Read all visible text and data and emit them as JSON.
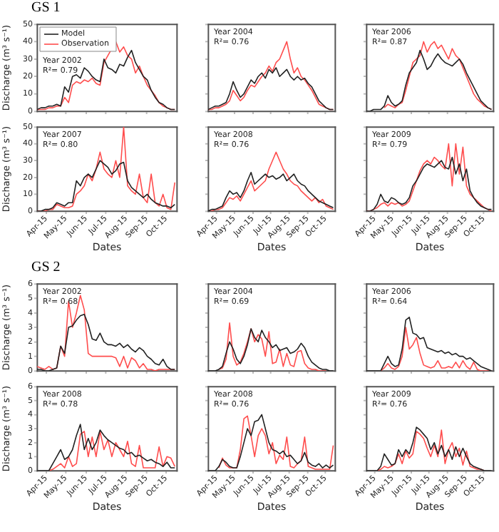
{
  "chart_data": [
    {
      "type": "line",
      "title": "GS 1",
      "ylabel": "Discharge (m³ s⁻¹)",
      "annotations": [
        "Year 2002",
        "R²= 0.79"
      ],
      "legend": "top left",
      "tick_labels": "y",
      "xlim": [
        "--04-01",
        "--10-31"
      ],
      "xticks": [
        {
          "value": "--04-15",
          "label": null
        },
        {
          "value": "--05-15",
          "label": null
        },
        {
          "value": "--06-15",
          "label": null
        },
        {
          "value": "--07-15",
          "label": null
        },
        {
          "value": "--08-15",
          "label": null
        },
        {
          "value": "--09-15",
          "label": null
        },
        {
          "value": "--10-15",
          "label": null
        }
      ],
      "ylim": [
        0,
        50
      ],
      "yticks": [
        0,
        10,
        20,
        30,
        40,
        50
      ],
      "x": [
        "--04-01",
        "--04-07",
        "--04-13",
        "--04-19",
        "--04-25",
        "--05-01",
        "--05-07",
        "--05-13",
        "--05-19",
        "--05-25",
        "--05-31",
        "--06-06",
        "--06-12",
        "--06-18",
        "--06-24",
        "--06-30",
        "--07-06",
        "--07-12",
        "--07-18",
        "--07-24",
        "--07-30",
        "--08-05",
        "--08-11",
        "--08-17",
        "--08-23",
        "--08-29",
        "--09-04",
        "--09-10",
        "--09-16",
        "--09-22",
        "--09-28",
        "--10-04",
        "--10-10",
        "--10-16",
        "--10-22",
        "--10-28"
      ],
      "series": [
        {
          "name": "Model",
          "color": "#222222",
          "values": [
            1,
            2,
            2,
            3,
            3,
            4,
            3,
            14,
            11,
            20,
            21,
            19,
            25,
            23,
            20,
            18,
            17,
            30,
            25,
            24,
            22,
            27,
            26,
            31,
            35,
            28,
            24,
            20,
            18,
            12,
            8,
            5,
            4,
            2,
            1,
            1
          ]
        },
        {
          "name": "Observation",
          "color": "#ff4d4d",
          "values": [
            1,
            1,
            1,
            2,
            2,
            3,
            3,
            8,
            5,
            15,
            17,
            16,
            18,
            17,
            19,
            16,
            15,
            28,
            32,
            36,
            40,
            34,
            37,
            32,
            30,
            22,
            26,
            20,
            15,
            12,
            9,
            5,
            3,
            2,
            1,
            1
          ]
        }
      ]
    },
    {
      "type": "line",
      "annotations": [
        "Year 2004",
        "R²= 0.76"
      ],
      "tick_labels": false,
      "xlim": [
        "--04-01",
        "--10-31"
      ],
      "xticks": [
        {
          "value": "--04-15",
          "label": null
        },
        {
          "value": "--05-15",
          "label": null
        },
        {
          "value": "--06-15",
          "label": null
        },
        {
          "value": "--07-15",
          "label": null
        },
        {
          "value": "--08-15",
          "label": null
        },
        {
          "value": "--09-15",
          "label": null
        },
        {
          "value": "--10-15",
          "label": null
        }
      ],
      "ylim": [
        0,
        50
      ],
      "yticks": [
        {
          "value": 0,
          "label": null
        },
        {
          "value": 10,
          "label": null
        },
        {
          "value": 20,
          "label": null
        },
        {
          "value": 30,
          "label": null
        },
        {
          "value": 40,
          "label": null
        },
        {
          "value": 50,
          "label": null
        }
      ],
      "x": [
        "--04-01",
        "--04-07",
        "--04-13",
        "--04-19",
        "--04-25",
        "--05-01",
        "--05-07",
        "--05-13",
        "--05-19",
        "--05-25",
        "--05-31",
        "--06-06",
        "--06-12",
        "--06-18",
        "--06-24",
        "--06-30",
        "--07-06",
        "--07-12",
        "--07-18",
        "--07-24",
        "--07-30",
        "--08-05",
        "--08-11",
        "--08-17",
        "--08-23",
        "--08-29",
        "--09-04",
        "--09-10",
        "--09-16",
        "--09-22",
        "--09-28",
        "--10-04",
        "--10-10",
        "--10-16",
        "--10-22",
        "--10-28"
      ],
      "series": [
        {
          "color": "#222222",
          "values": [
            1,
            2,
            3,
            3,
            4,
            5,
            10,
            17,
            12,
            8,
            10,
            14,
            18,
            16,
            20,
            22,
            19,
            24,
            22,
            25,
            20,
            22,
            24,
            20,
            18,
            20,
            18,
            19,
            16,
            14,
            10,
            6,
            4,
            2,
            1,
            1
          ]
        },
        {
          "color": "#ff4d4d",
          "values": [
            1,
            1,
            2,
            2,
            3,
            4,
            6,
            12,
            9,
            6,
            8,
            12,
            15,
            14,
            17,
            20,
            22,
            26,
            23,
            28,
            30,
            35,
            40,
            30,
            22,
            25,
            20,
            18,
            15,
            12,
            8,
            4,
            3,
            2,
            1,
            1
          ]
        }
      ]
    },
    {
      "type": "line",
      "annotations": [
        "Year 2006",
        "R²= 0.87"
      ],
      "tick_labels": false,
      "xlim": [
        "--04-01",
        "--10-31"
      ],
      "xticks": [
        {
          "value": "--04-15",
          "label": null
        },
        {
          "value": "--05-15",
          "label": null
        },
        {
          "value": "--06-15",
          "label": null
        },
        {
          "value": "--07-15",
          "label": null
        },
        {
          "value": "--08-15",
          "label": null
        },
        {
          "value": "--09-15",
          "label": null
        },
        {
          "value": "--10-15",
          "label": null
        }
      ],
      "ylim": [
        0,
        50
      ],
      "yticks": [
        {
          "value": 0,
          "label": null
        },
        {
          "value": 10,
          "label": null
        },
        {
          "value": 20,
          "label": null
        },
        {
          "value": 30,
          "label": null
        },
        {
          "value": 40,
          "label": null
        },
        {
          "value": 50,
          "label": null
        }
      ],
      "x": [
        "--04-01",
        "--04-07",
        "--04-13",
        "--04-19",
        "--04-25",
        "--05-01",
        "--05-07",
        "--05-13",
        "--05-19",
        "--05-25",
        "--05-31",
        "--06-06",
        "--06-12",
        "--06-18",
        "--06-24",
        "--06-30",
        "--07-06",
        "--07-12",
        "--07-18",
        "--07-24",
        "--07-30",
        "--08-05",
        "--08-11",
        "--08-17",
        "--08-23",
        "--08-29",
        "--09-04",
        "--09-10",
        "--09-16",
        "--09-22",
        "--09-28",
        "--10-04",
        "--10-10",
        "--10-16",
        "--10-22",
        "--10-28"
      ],
      "series": [
        {
          "color": "#222222",
          "values": [
            0,
            0,
            1,
            1,
            1,
            3,
            9,
            5,
            3,
            4,
            6,
            15,
            22,
            25,
            28,
            35,
            30,
            24,
            26,
            30,
            33,
            30,
            28,
            27,
            26,
            28,
            30,
            27,
            22,
            18,
            14,
            10,
            6,
            4,
            2,
            1
          ]
        },
        {
          "color": "#ff4d4d",
          "values": [
            null,
            null,
            null,
            null,
            null,
            2,
            4,
            3,
            2,
            4,
            5,
            12,
            20,
            28,
            30,
            32,
            40,
            34,
            38,
            40,
            36,
            38,
            34,
            30,
            36,
            32,
            30,
            25,
            20,
            15,
            10,
            7,
            5,
            3,
            2,
            1
          ]
        }
      ]
    },
    {
      "type": "line",
      "xlabel": "Dates",
      "ylabel": "Discharge (m³ s⁻¹)",
      "annotations": [
        "Year 2007",
        "R²= 0.80"
      ],
      "xlim": [
        "--04-01",
        "--10-31"
      ],
      "xticks": [
        {
          "value": "--04-15",
          "label": "Apr-15"
        },
        {
          "value": "--05-15",
          "label": "May-15"
        },
        {
          "value": "--06-15",
          "label": "Jun-15"
        },
        {
          "value": "--07-15",
          "label": "Jul-15"
        },
        {
          "value": "--08-15",
          "label": "Aug-15"
        },
        {
          "value": "--09-15",
          "label": "Sep-15"
        },
        {
          "value": "--10-15",
          "label": "Oct-15"
        }
      ],
      "ylim": [
        0,
        50
      ],
      "yticks": [
        0,
        10,
        20,
        30,
        40,
        50
      ],
      "x": [
        "--04-01",
        "--04-07",
        "--04-13",
        "--04-19",
        "--04-25",
        "--05-01",
        "--05-07",
        "--05-13",
        "--05-19",
        "--05-25",
        "--05-31",
        "--06-06",
        "--06-12",
        "--06-18",
        "--06-24",
        "--06-30",
        "--07-06",
        "--07-12",
        "--07-18",
        "--07-24",
        "--07-30",
        "--08-05",
        "--08-11",
        "--08-17",
        "--08-23",
        "--08-29",
        "--09-04",
        "--09-10",
        "--09-16",
        "--09-22",
        "--09-28",
        "--10-04",
        "--10-10",
        "--10-16",
        "--10-22",
        "--10-28"
      ],
      "series": [
        {
          "color": "#222222",
          "values": [
            0,
            0,
            1,
            1,
            2,
            5,
            4,
            3,
            5,
            5,
            18,
            15,
            20,
            22,
            20,
            25,
            30,
            28,
            26,
            22,
            24,
            28,
            29,
            18,
            14,
            12,
            10,
            8,
            10,
            7,
            5,
            4,
            3,
            3,
            2,
            4
          ]
        },
        {
          "color": "#ff4d4d",
          "values": [
            0,
            0,
            0,
            1,
            1,
            4,
            3,
            2,
            2,
            3,
            10,
            12,
            15,
            22,
            18,
            25,
            35,
            25,
            22,
            20,
            30,
            20,
            50,
            15,
            12,
            10,
            22,
            8,
            5,
            22,
            5,
            3,
            10,
            2,
            1,
            17
          ]
        }
      ]
    },
    {
      "type": "line",
      "xlabel": "Dates",
      "annotations": [
        "Year 2008",
        "R²= 0.76"
      ],
      "tick_labels": "x",
      "xlim": [
        "--04-01",
        "--10-31"
      ],
      "xticks": [
        {
          "value": "--04-15",
          "label": "Apr-15"
        },
        {
          "value": "--05-15",
          "label": "May-15"
        },
        {
          "value": "--06-15",
          "label": "Jun-15"
        },
        {
          "value": "--07-15",
          "label": "Jul-15"
        },
        {
          "value": "--08-15",
          "label": "Aug-15"
        },
        {
          "value": "--09-15",
          "label": "Sep-15"
        },
        {
          "value": "--10-15",
          "label": "Oct-15"
        }
      ],
      "ylim": [
        0,
        50
      ],
      "yticks": [
        {
          "value": 0,
          "label": null
        },
        {
          "value": 10,
          "label": null
        },
        {
          "value": 20,
          "label": null
        },
        {
          "value": 30,
          "label": null
        },
        {
          "value": 40,
          "label": null
        },
        {
          "value": 50,
          "label": null
        }
      ],
      "x": [
        "--04-01",
        "--04-07",
        "--04-13",
        "--04-19",
        "--04-25",
        "--05-01",
        "--05-07",
        "--05-13",
        "--05-19",
        "--05-25",
        "--05-31",
        "--06-06",
        "--06-12",
        "--06-18",
        "--06-24",
        "--06-30",
        "--07-06",
        "--07-12",
        "--07-18",
        "--07-24",
        "--07-30",
        "--08-05",
        "--08-11",
        "--08-17",
        "--08-23",
        "--08-29",
        "--09-04",
        "--09-10",
        "--09-16",
        "--09-22",
        "--09-28",
        "--10-04",
        "--10-10",
        "--10-16",
        "--10-22",
        "--10-28"
      ],
      "series": [
        {
          "color": "#222222",
          "values": [
            0,
            1,
            1,
            2,
            3,
            8,
            12,
            10,
            11,
            8,
            12,
            18,
            23,
            16,
            18,
            20,
            22,
            20,
            21,
            19,
            20,
            22,
            18,
            20,
            22,
            18,
            16,
            15,
            12,
            10,
            8,
            6,
            5,
            4,
            3,
            2
          ]
        },
        {
          "color": "#ff4d4d",
          "values": [
            0,
            0,
            1,
            1,
            2,
            5,
            8,
            7,
            9,
            6,
            10,
            14,
            18,
            12,
            14,
            16,
            18,
            25,
            30,
            35,
            30,
            25,
            22,
            18,
            16,
            15,
            12,
            10,
            8,
            6,
            8,
            5,
            7,
            3,
            2,
            1
          ]
        }
      ]
    },
    {
      "type": "line",
      "xlabel": "Dates",
      "annotations": [
        "Year 2009",
        "R²= 0.79"
      ],
      "tick_labels": "x",
      "xlim": [
        "--04-01",
        "--10-31"
      ],
      "xticks": [
        {
          "value": "--04-15",
          "label": "Apr-15"
        },
        {
          "value": "--05-15",
          "label": "May-15"
        },
        {
          "value": "--06-15",
          "label": "Jun-15"
        },
        {
          "value": "--07-15",
          "label": "Jul-15"
        },
        {
          "value": "--08-15",
          "label": "Aug-15"
        },
        {
          "value": "--09-15",
          "label": "Sep-15"
        },
        {
          "value": "--10-15",
          "label": "Oct-15"
        }
      ],
      "ylim": [
        0,
        50
      ],
      "yticks": [
        {
          "value": 0,
          "label": null
        },
        {
          "value": 10,
          "label": null
        },
        {
          "value": 20,
          "label": null
        },
        {
          "value": 30,
          "label": null
        },
        {
          "value": 40,
          "label": null
        },
        {
          "value": 50,
          "label": null
        }
      ],
      "x": [
        "--04-01",
        "--04-07",
        "--04-13",
        "--04-19",
        "--04-25",
        "--05-01",
        "--05-07",
        "--05-13",
        "--05-19",
        "--05-25",
        "--05-31",
        "--06-06",
        "--06-12",
        "--06-18",
        "--06-24",
        "--06-30",
        "--07-06",
        "--07-12",
        "--07-18",
        "--07-24",
        "--07-30",
        "--08-05",
        "--08-11",
        "--08-17",
        "--08-23",
        "--08-29",
        "--09-04",
        "--09-10",
        "--09-16",
        "--09-22",
        "--09-28",
        "--10-04",
        "--10-10",
        "--10-16",
        "--10-22",
        "--10-28"
      ],
      "series": [
        {
          "color": "#222222",
          "values": [
            0,
            0,
            1,
            4,
            10,
            6,
            5,
            8,
            7,
            5,
            4,
            5,
            8,
            15,
            18,
            22,
            26,
            28,
            27,
            26,
            28,
            30,
            26,
            25,
            32,
            22,
            28,
            18,
            25,
            12,
            8,
            5,
            3,
            2,
            1,
            1
          ]
        },
        {
          "color": "#ff4d4d",
          "values": [
            0,
            0,
            1,
            2,
            4,
            5,
            3,
            5,
            4,
            5,
            3,
            4,
            6,
            12,
            18,
            24,
            28,
            30,
            28,
            32,
            30,
            27,
            25,
            40,
            15,
            40,
            22,
            38,
            15,
            10,
            8,
            6,
            4,
            2,
            1,
            0
          ]
        }
      ]
    },
    {
      "type": "line",
      "title": "GS 2",
      "ylabel": "Discharge (m³ s⁻¹)",
      "annotations": [
        "Year 2002",
        "R²= 0.68"
      ],
      "tick_labels": "y",
      "xlim": [
        "--04-01",
        "--10-31"
      ],
      "xticks": [
        {
          "value": "--04-15",
          "label": null
        },
        {
          "value": "--05-15",
          "label": null
        },
        {
          "value": "--06-15",
          "label": null
        },
        {
          "value": "--07-15",
          "label": null
        },
        {
          "value": "--08-15",
          "label": null
        },
        {
          "value": "--09-15",
          "label": null
        },
        {
          "value": "--10-15",
          "label": null
        }
      ],
      "ylim": [
        0,
        6
      ],
      "yticks": [
        0,
        1,
        2,
        3,
        4,
        5,
        6
      ],
      "x": [
        "--04-01",
        "--04-07",
        "--04-13",
        "--04-19",
        "--04-25",
        "--05-01",
        "--05-07",
        "--05-13",
        "--05-19",
        "--05-25",
        "--05-31",
        "--06-06",
        "--06-12",
        "--06-18",
        "--06-24",
        "--06-30",
        "--07-06",
        "--07-12",
        "--07-18",
        "--07-24",
        "--07-30",
        "--08-05",
        "--08-11",
        "--08-17",
        "--08-23",
        "--08-29",
        "--09-04",
        "--09-10",
        "--09-16",
        "--09-22",
        "--09-28",
        "--10-04",
        "--10-10",
        "--10-16",
        "--10-22",
        "--10-28"
      ],
      "series": [
        {
          "color": "#222222",
          "values": [
            0.1,
            0.1,
            0,
            0,
            0.1,
            0.2,
            1.7,
            1.2,
            3.0,
            3.1,
            3.5,
            3.8,
            3.9,
            3.2,
            2.2,
            2.1,
            2.6,
            2.0,
            1.8,
            1.8,
            1.7,
            1.9,
            1.6,
            1.8,
            1.5,
            1.3,
            1.6,
            1.4,
            1.0,
            0.8,
            0.5,
            0.4,
            0.8,
            0.3,
            0.1,
            0.1
          ]
        },
        {
          "color": "#ff4d4d",
          "values": [
            0.3,
            0.2,
            0.1,
            0.3,
            0.1,
            0.2,
            1.7,
            1.0,
            4.8,
            3.0,
            4.0,
            5.2,
            4.2,
            1.2,
            1.0,
            1.0,
            1.0,
            1.0,
            1.0,
            1.0,
            0.9,
            0.3,
            1.0,
            0.2,
            0.9,
            0.7,
            0.2,
            0.5,
            0.1,
            0.1,
            0,
            0.1,
            0.1,
            0.1,
            0.1,
            0.1
          ]
        }
      ]
    },
    {
      "type": "line",
      "annotations": [
        "Year 2004",
        "R²= 0.69"
      ],
      "tick_labels": false,
      "xlim": [
        "--04-01",
        "--10-31"
      ],
      "xticks": [
        {
          "value": "--04-15",
          "label": null
        },
        {
          "value": "--05-15",
          "label": null
        },
        {
          "value": "--06-15",
          "label": null
        },
        {
          "value": "--07-15",
          "label": null
        },
        {
          "value": "--08-15",
          "label": null
        },
        {
          "value": "--09-15",
          "label": null
        },
        {
          "value": "--10-15",
          "label": null
        }
      ],
      "ylim": [
        0,
        6
      ],
      "yticks": [
        {
          "value": 0,
          "label": null
        },
        {
          "value": 1,
          "label": null
        },
        {
          "value": 2,
          "label": null
        },
        {
          "value": 3,
          "label": null
        },
        {
          "value": 4,
          "label": null
        },
        {
          "value": 5,
          "label": null
        },
        {
          "value": 6,
          "label": null
        }
      ],
      "x": [
        "--04-01",
        "--04-07",
        "--04-13",
        "--04-19",
        "--04-25",
        "--05-01",
        "--05-07",
        "--05-13",
        "--05-19",
        "--05-25",
        "--05-31",
        "--06-06",
        "--06-12",
        "--06-18",
        "--06-24",
        "--06-30",
        "--07-06",
        "--07-12",
        "--07-18",
        "--07-24",
        "--07-30",
        "--08-05",
        "--08-11",
        "--08-17",
        "--08-23",
        "--08-29",
        "--09-04",
        "--09-10",
        "--09-16",
        "--09-22",
        "--09-28",
        "--10-04",
        "--10-10",
        "--10-16",
        "--10-22",
        "--10-28"
      ],
      "series": [
        {
          "color": "#222222",
          "values": [
            0,
            0,
            0,
            0.1,
            0.3,
            1.2,
            2.0,
            1.5,
            0.8,
            0.5,
            1.0,
            1.8,
            2.9,
            2.3,
            2.0,
            2.8,
            2.3,
            2.0,
            1.6,
            1.8,
            1.4,
            1.5,
            1.6,
            1.2,
            1.3,
            1.5,
            1.9,
            1.6,
            1.0,
            0.6,
            0.4,
            0.2,
            0.1,
            0.1,
            0,
            0
          ]
        },
        {
          "color": "#ff4d4d",
          "values": [
            null,
            null,
            null,
            0.1,
            0.2,
            0.8,
            3.3,
            1.0,
            0.4,
            0.6,
            1.2,
            2.0,
            2.9,
            2.0,
            2.5,
            2.2,
            1.0,
            2.7,
            0.5,
            0.6,
            1.5,
            0.3,
            1.2,
            0.4,
            0.3,
            1.3,
            1.4,
            0.5,
            0.2,
            0.1,
            0.1,
            0,
            0,
            0,
            null,
            null
          ]
        }
      ]
    },
    {
      "type": "line",
      "annotations": [
        "Year 2006",
        "R²= 0.64"
      ],
      "tick_labels": false,
      "xlim": [
        "--04-01",
        "--10-31"
      ],
      "xticks": [
        {
          "value": "--04-15",
          "label": null
        },
        {
          "value": "--05-15",
          "label": null
        },
        {
          "value": "--06-15",
          "label": null
        },
        {
          "value": "--07-15",
          "label": null
        },
        {
          "value": "--08-15",
          "label": null
        },
        {
          "value": "--09-15",
          "label": null
        },
        {
          "value": "--10-15",
          "label": null
        }
      ],
      "ylim": [
        0,
        6
      ],
      "yticks": [
        {
          "value": 0,
          "label": null
        },
        {
          "value": 1,
          "label": null
        },
        {
          "value": 2,
          "label": null
        },
        {
          "value": 3,
          "label": null
        },
        {
          "value": 4,
          "label": null
        },
        {
          "value": 5,
          "label": null
        },
        {
          "value": 6,
          "label": null
        }
      ],
      "x": [
        "--04-01",
        "--04-07",
        "--04-13",
        "--04-19",
        "--04-25",
        "--05-01",
        "--05-07",
        "--05-13",
        "--05-19",
        "--05-25",
        "--05-31",
        "--06-06",
        "--06-12",
        "--06-18",
        "--06-24",
        "--06-30",
        "--07-06",
        "--07-12",
        "--07-18",
        "--07-24",
        "--07-30",
        "--08-05",
        "--08-11",
        "--08-17",
        "--08-23",
        "--08-29",
        "--09-04",
        "--09-10",
        "--09-16",
        "--09-22",
        "--09-28",
        "--10-04",
        "--10-10",
        "--10-16",
        "--10-22",
        "--10-28"
      ],
      "series": [
        {
          "color": "#222222",
          "values": [
            0,
            0,
            0,
            0,
            0,
            0.5,
            1.0,
            0.5,
            0.3,
            0.4,
            1.5,
            3.5,
            3.7,
            2.6,
            2.5,
            2.2,
            2.3,
            1.6,
            1.5,
            1.4,
            1.3,
            1.4,
            1.2,
            1.3,
            1.1,
            1.2,
            1.0,
            1.0,
            0.8,
            0.9,
            0.7,
            0.5,
            0.3,
            0.2,
            0.1,
            0
          ]
        },
        {
          "color": "#ff4d4d",
          "values": [
            null,
            null,
            null,
            null,
            0,
            0.2,
            0.5,
            0.2,
            0.1,
            0.3,
            1.0,
            3.0,
            1.5,
            1.8,
            2.3,
            1.2,
            0.4,
            0.3,
            0.2,
            0.3,
            0.7,
            0.2,
            0.2,
            0.3,
            0.2,
            0.6,
            0.2,
            0.7,
            0.3,
            0.1,
            0.6,
            0.1,
            0,
            0,
            0,
            0
          ]
        }
      ]
    },
    {
      "type": "line",
      "xlabel": "Dates",
      "ylabel": "Discharge (m³ s⁻¹)",
      "annotations": [
        "Year 2008",
        "R²= 0.78"
      ],
      "xlim": [
        "--04-01",
        "--10-31"
      ],
      "xticks": [
        {
          "value": "--04-15",
          "label": "Apr-15"
        },
        {
          "value": "--05-15",
          "label": "May-15"
        },
        {
          "value": "--06-15",
          "label": "Jun-15"
        },
        {
          "value": "--07-15",
          "label": "Jul-15"
        },
        {
          "value": "--08-15",
          "label": "Aug-15"
        },
        {
          "value": "--09-15",
          "label": "Sep-15"
        },
        {
          "value": "--10-15",
          "label": "Oct-15"
        }
      ],
      "ylim": [
        0,
        6
      ],
      "yticks": [
        0,
        1,
        2,
        3,
        4,
        5,
        6
      ],
      "x": [
        "--04-01",
        "--04-07",
        "--04-13",
        "--04-19",
        "--04-25",
        "--05-01",
        "--05-07",
        "--05-13",
        "--05-19",
        "--05-25",
        "--05-31",
        "--06-06",
        "--06-12",
        "--06-18",
        "--06-24",
        "--06-30",
        "--07-06",
        "--07-12",
        "--07-18",
        "--07-24",
        "--07-30",
        "--08-05",
        "--08-11",
        "--08-17",
        "--08-23",
        "--08-29",
        "--09-04",
        "--09-10",
        "--09-16",
        "--09-22",
        "--09-28",
        "--10-04",
        "--10-10",
        "--10-16",
        "--10-22",
        "--10-28"
      ],
      "series": [
        {
          "color": "#222222",
          "values": [
            0,
            0,
            0,
            0,
            0.5,
            1.0,
            1.5,
            0.8,
            1.0,
            1.5,
            2.5,
            3.3,
            1.5,
            2.3,
            1.5,
            2.0,
            2.9,
            2.5,
            2.2,
            2.0,
            1.8,
            1.6,
            1.5,
            1.2,
            1.3,
            1.0,
            1.1,
            0.9,
            0.7,
            0.8,
            0.6,
            0.5,
            0.3,
            0.6,
            0.2,
            0.2
          ]
        },
        {
          "color": "#ff4d4d",
          "values": [
            null,
            null,
            null,
            0,
            0.1,
            0.3,
            0.5,
            0.2,
            1.0,
            0.3,
            0.5,
            2.6,
            2.8,
            1.0,
            2.4,
            1.0,
            2.8,
            1.5,
            2.2,
            1.0,
            2.0,
            1.5,
            1.0,
            2.1,
            0.5,
            0.3,
            1.8,
            0.2,
            0.2,
            0.2,
            0.2,
            1.7,
            0.3,
            1.0,
            0.9,
            0.3
          ]
        }
      ]
    },
    {
      "type": "line",
      "xlabel": "Dates",
      "annotations": [
        "Year 2008",
        "R²= 0.76"
      ],
      "tick_labels": "x",
      "xlim": [
        "--04-01",
        "--10-31"
      ],
      "xticks": [
        {
          "value": "--04-15",
          "label": "Apr-15"
        },
        {
          "value": "--05-15",
          "label": "May-15"
        },
        {
          "value": "--06-15",
          "label": "Jun-15"
        },
        {
          "value": "--07-15",
          "label": "Jul-15"
        },
        {
          "value": "--08-15",
          "label": "Aug-15"
        },
        {
          "value": "--09-15",
          "label": "Sep-15"
        },
        {
          "value": "--10-15",
          "label": "Oct-15"
        }
      ],
      "ylim": [
        0,
        6
      ],
      "yticks": [
        {
          "value": 0,
          "label": null
        },
        {
          "value": 1,
          "label": null
        },
        {
          "value": 2,
          "label": null
        },
        {
          "value": 3,
          "label": null
        },
        {
          "value": 4,
          "label": null
        },
        {
          "value": 5,
          "label": null
        },
        {
          "value": 6,
          "label": null
        }
      ],
      "x": [
        "--04-01",
        "--04-07",
        "--04-13",
        "--04-19",
        "--04-25",
        "--05-01",
        "--05-07",
        "--05-13",
        "--05-19",
        "--05-25",
        "--05-31",
        "--06-06",
        "--06-12",
        "--06-18",
        "--06-24",
        "--06-30",
        "--07-06",
        "--07-12",
        "--07-18",
        "--07-24",
        "--07-30",
        "--08-05",
        "--08-11",
        "--08-17",
        "--08-23",
        "--08-29",
        "--09-04",
        "--09-10",
        "--09-16",
        "--09-22",
        "--09-28",
        "--10-04",
        "--10-10",
        "--10-16",
        "--10-22",
        "--10-28"
      ],
      "series": [
        {
          "color": "#222222",
          "values": [
            0,
            0,
            0,
            0.3,
            0.8,
            0.6,
            0.3,
            0.2,
            0.2,
            1.0,
            2.0,
            3.0,
            2.5,
            3.5,
            3.6,
            4.0,
            3.0,
            2.0,
            1.5,
            1.4,
            1.2,
            1.4,
            1.0,
            1.1,
            0.8,
            0.5,
            0.7,
            1.3,
            0.6,
            0.4,
            0.3,
            0.5,
            0.2,
            0.4,
            0.2,
            0.4
          ]
        },
        {
          "color": "#ff4d4d",
          "values": [
            null,
            null,
            null,
            0.2,
            0.9,
            0.4,
            0.2,
            0.2,
            0.2,
            1.5,
            3.7,
            3.9,
            2.5,
            1.0,
            2.5,
            3.0,
            2.5,
            1.2,
            2.0,
            0.5,
            1.1,
            0.8,
            2.4,
            0.3,
            0.2,
            0.5,
            0.7,
            2.4,
            0.3,
            0.2,
            0.1,
            0.1,
            0.1,
            0.1,
            0.1,
            1.8
          ]
        }
      ]
    },
    {
      "type": "line",
      "xlabel": "Dates",
      "annotations": [
        "Year 2009",
        "R²= 0.76"
      ],
      "tick_labels": "x",
      "xlim": [
        "--04-01",
        "--10-31"
      ],
      "xticks": [
        {
          "value": "--04-15",
          "label": "Apr-15"
        },
        {
          "value": "--05-15",
          "label": "May-15"
        },
        {
          "value": "--06-15",
          "label": "Jun-15"
        },
        {
          "value": "--07-15",
          "label": "Jul-15"
        },
        {
          "value": "--08-15",
          "label": "Aug-15"
        },
        {
          "value": "--09-15",
          "label": "Sep-15"
        },
        {
          "value": "--10-15",
          "label": "Oct-15"
        }
      ],
      "ylim": [
        0,
        6
      ],
      "yticks": [
        {
          "value": 0,
          "label": null
        },
        {
          "value": 1,
          "label": null
        },
        {
          "value": 2,
          "label": null
        },
        {
          "value": 3,
          "label": null
        },
        {
          "value": 4,
          "label": null
        },
        {
          "value": 5,
          "label": null
        },
        {
          "value": 6,
          "label": null
        }
      ],
      "x": [
        "--04-01",
        "--04-07",
        "--04-13",
        "--04-19",
        "--04-25",
        "--05-01",
        "--05-07",
        "--05-13",
        "--05-19",
        "--05-25",
        "--05-31",
        "--06-06",
        "--06-12",
        "--06-18",
        "--06-24",
        "--06-30",
        "--07-06",
        "--07-12",
        "--07-18",
        "--07-24",
        "--07-30",
        "--08-05",
        "--08-11",
        "--08-17",
        "--08-23",
        "--08-29",
        "--09-04",
        "--09-10",
        "--09-16",
        "--09-22",
        "--09-28",
        "--10-04",
        "--10-10",
        "--10-16",
        "--10-22",
        "--10-28"
      ],
      "series": [
        {
          "color": "#222222",
          "values": [
            0,
            0,
            0,
            0,
            0.3,
            1.2,
            0.8,
            0.4,
            0.5,
            1.5,
            1.0,
            1.5,
            1.2,
            2.0,
            3.1,
            2.9,
            2.6,
            2.3,
            1.5,
            2.0,
            1.2,
            1.8,
            1.0,
            1.5,
            0.8,
            1.7,
            1.0,
            1.6,
            1.0,
            0.5,
            0.3,
            0.2,
            0.1,
            0,
            0,
            0
          ]
        },
        {
          "color": "#ff4d4d",
          "values": [
            null,
            null,
            null,
            0,
            0.1,
            0.3,
            0.2,
            0.3,
            0.5,
            1.2,
            0.5,
            1.4,
            0.9,
            1.2,
            2.8,
            2.6,
            2.3,
            1.6,
            1.0,
            1.8,
            1.0,
            2.9,
            0.5,
            1.5,
            2.0,
            1.0,
            1.6,
            0.4,
            1.4,
            0.3,
            0.2,
            0.1,
            0.1,
            0,
            null,
            null
          ]
        }
      ]
    }
  ]
}
